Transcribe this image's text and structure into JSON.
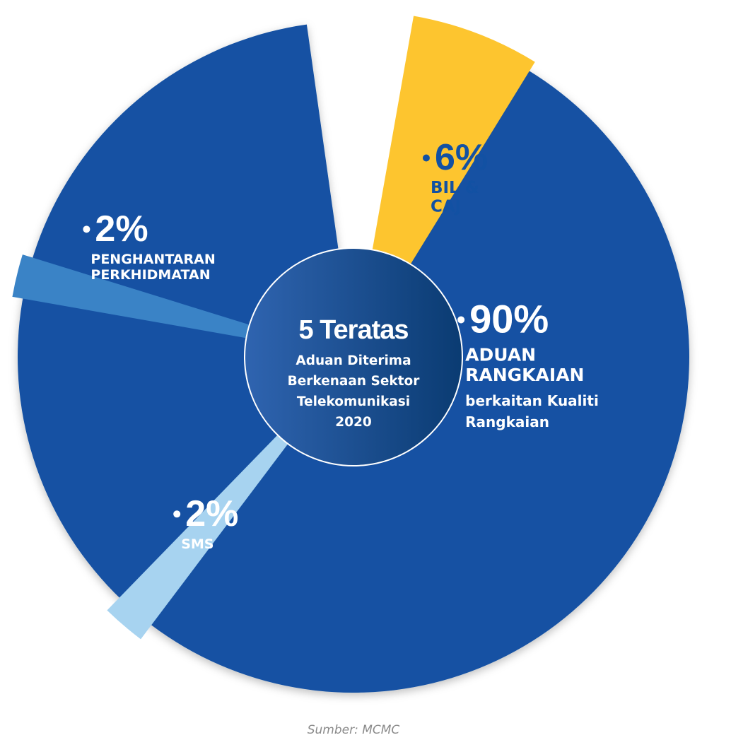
{
  "chart_data": {
    "type": "pie",
    "title": "5 Teratas",
    "subtitle_lines": [
      "Aduan Diterima",
      "Berkenaan Sektor",
      "Telekomunikasi",
      "2020"
    ],
    "slices": [
      {
        "value": 90,
        "percent_label": "90%",
        "name_lines": [
          "ADUAN",
          "RANGKAIAN"
        ],
        "detail_lines": [
          "berkaitan Kualiti",
          "Rangkaian"
        ],
        "color": "#1251a3"
      },
      {
        "value": 6,
        "percent_label": "6%",
        "name_lines": [
          "BIL &",
          "CAJ"
        ],
        "detail_lines": [],
        "color": "#fdc52f"
      },
      {
        "value": 2,
        "percent_label": "2%",
        "name_lines": [
          "PENGHANTARAN",
          "PERKHIDMATAN"
        ],
        "detail_lines": [],
        "color": "#3a83c6"
      },
      {
        "value": 2,
        "percent_label": "2%",
        "name_lines": [
          "SMS"
        ],
        "detail_lines": [],
        "color": "#a7d3f0"
      }
    ],
    "center_gradient": [
      "#2f64b0",
      "#0a3b72"
    ],
    "percent_text_colors": [
      "#ffffff",
      "#1251a3",
      "#ffffff",
      "#ffffff"
    ],
    "name_text_colors": [
      "#ffffff",
      "#1251a3",
      "#ffffff",
      "#ffffff"
    ]
  },
  "source_label": "Sumber: MCMC"
}
